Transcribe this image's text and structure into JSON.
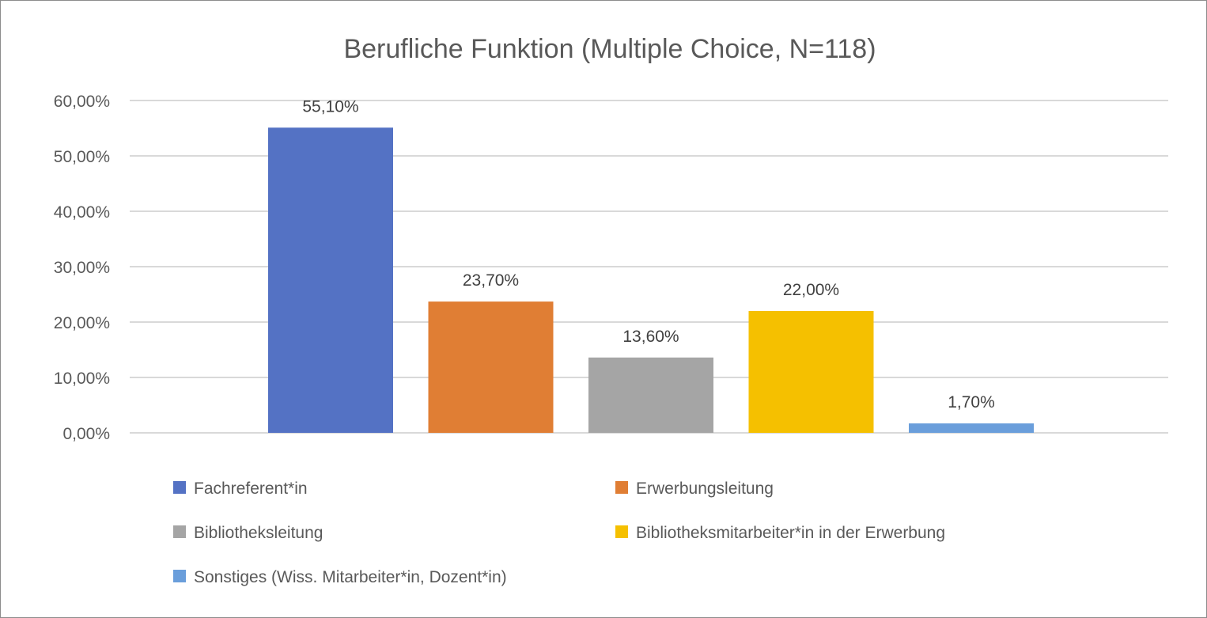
{
  "chart_data": {
    "type": "bar",
    "title": "Berufliche Funktion (Multiple Choice, N=118)",
    "xlabel": "",
    "ylabel": "",
    "ylim": [
      0,
      60
    ],
    "ytick_step": 10,
    "ytick_labels": [
      "0,00%",
      "10,00%",
      "20,00%",
      "30,00%",
      "40,00%",
      "50,00%",
      "60,00%"
    ],
    "grid": true,
    "legend_position": "bottom",
    "series": [
      {
        "name": "Fachreferent*in",
        "value": 55.1,
        "label": "55,10%",
        "color": "#5472C4"
      },
      {
        "name": "Erwerbungsleitung",
        "value": 23.7,
        "label": "23,70%",
        "color": "#E07E34"
      },
      {
        "name": "Bibliotheksleitung",
        "value": 13.6,
        "label": "13,60%",
        "color": "#A5A5A5"
      },
      {
        "name": "Bibliotheksmitarbeiter*in in der Erwerbung",
        "value": 22.0,
        "label": "22,00%",
        "color": "#F5C000"
      },
      {
        "name": "Sonstiges (Wiss. Mitarbeiter*in, Dozent*in)",
        "value": 1.7,
        "label": "1,70%",
        "color": "#6A9EDB"
      }
    ]
  }
}
